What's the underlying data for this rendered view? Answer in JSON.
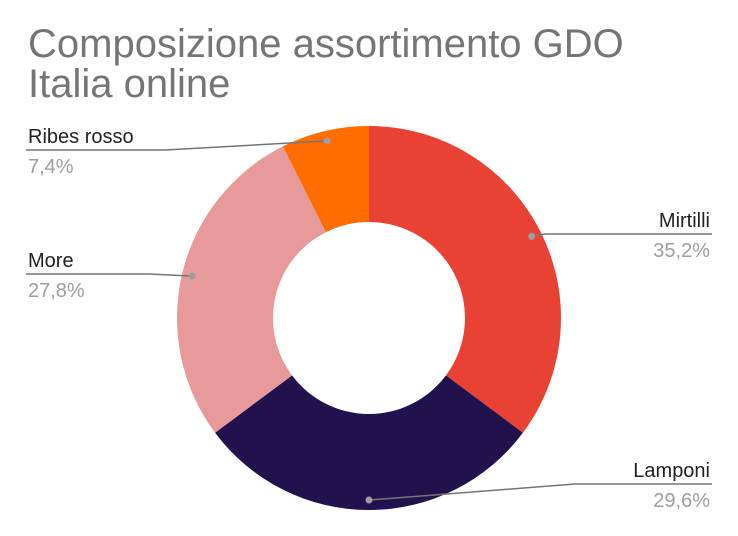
{
  "chart_data": {
    "type": "pie",
    "title": "Composizione assortimento GDO\nItalia online",
    "donut": true,
    "slices": [
      {
        "label": "Mirtilli",
        "value": 35.2,
        "display": "35,2%",
        "color": "#e94235"
      },
      {
        "label": "Lamponi",
        "value": 29.6,
        "display": "29,6%",
        "color": "#21124e"
      },
      {
        "label": "More",
        "value": 27.8,
        "display": "27,8%",
        "color": "#e8999a"
      },
      {
        "label": "Ribes rosso",
        "value": 7.4,
        "display": "7,4%",
        "color": "#ff6d01"
      }
    ],
    "colors": {
      "title": "#757575",
      "leader_line": "#757575",
      "label_name": "#222222",
      "label_value": "#9e9e9e"
    }
  }
}
